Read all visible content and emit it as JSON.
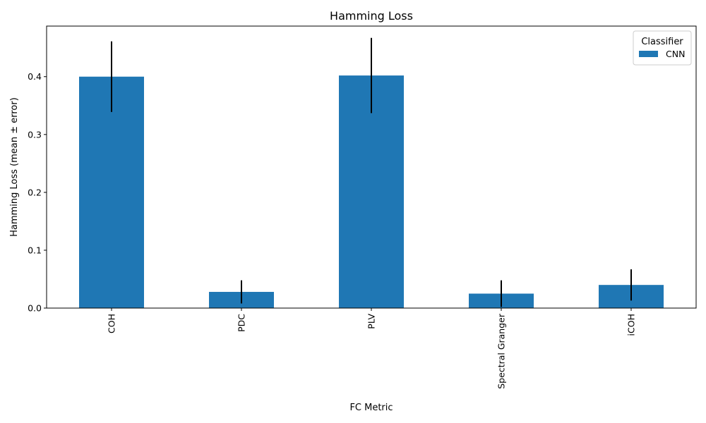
{
  "chart_data": {
    "type": "bar",
    "title": "Hamming Loss",
    "xlabel": "FC Metric",
    "ylabel": "Hamming Loss (mean ± error)",
    "categories": [
      "COH",
      "PDC",
      "PLV",
      "Spectral Granger",
      "iCOH"
    ],
    "series": [
      {
        "name": "CNN",
        "color": "#1f77b4",
        "values": [
          0.4,
          0.028,
          0.402,
          0.025,
          0.04
        ],
        "errors": [
          0.061,
          0.02,
          0.065,
          0.023,
          0.027
        ]
      }
    ],
    "ylim": [
      0,
      0.4874
    ],
    "yticks": [
      0.0,
      0.1,
      0.2,
      0.3,
      0.4
    ],
    "ytick_labels": [
      "0.0",
      "0.1",
      "0.2",
      "0.3",
      "0.4"
    ],
    "legend": {
      "title": "Classifier",
      "position": "top-right"
    },
    "grid": false
  }
}
